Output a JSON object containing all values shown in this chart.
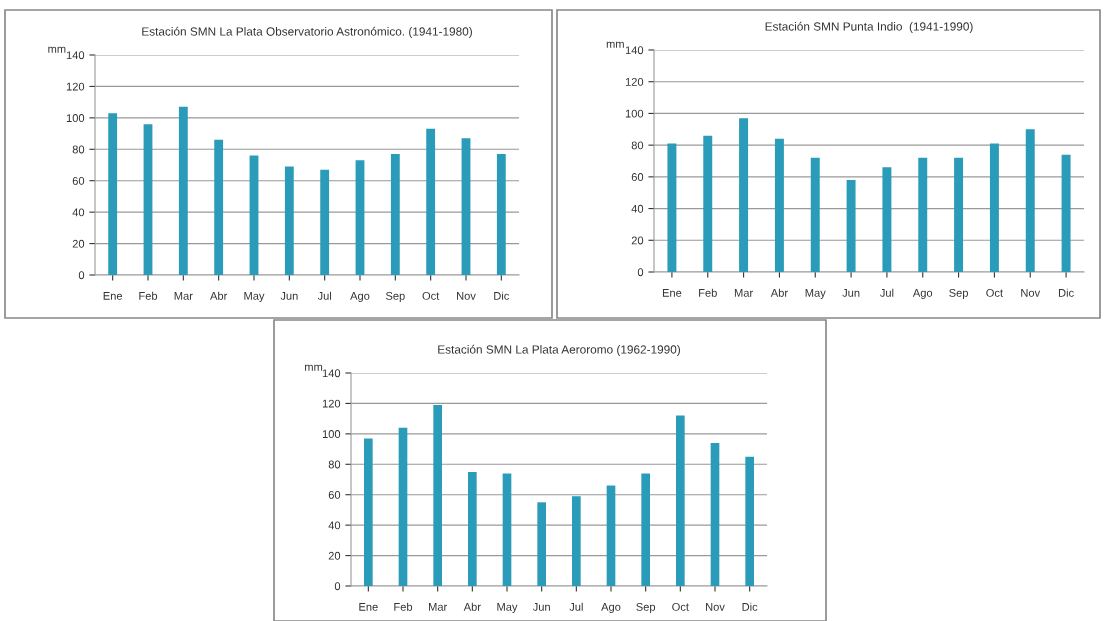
{
  "chart_data": [
    {
      "type": "bar",
      "title": "Estación SMN La Plata Observatorio Astronómico. (1941-1980)",
      "ylabel": "mm",
      "categories": [
        "Ene",
        "Feb",
        "Mar",
        "Abr",
        "May",
        "Jun",
        "Jul",
        "Ago",
        "Sep",
        "Oct",
        "Nov",
        "Dic"
      ],
      "values": [
        103,
        96,
        107,
        86,
        76,
        69,
        67,
        73,
        77,
        93,
        87,
        77
      ],
      "color": "#2a9bb8",
      "ylim": [
        0,
        140
      ],
      "yticks": [
        0,
        20,
        40,
        60,
        80,
        100,
        120,
        140
      ],
      "grid": "y"
    },
    {
      "type": "bar",
      "title": "Estación SMN Punta Indio  (1941-1990)",
      "ylabel": "mm",
      "categories": [
        "Ene",
        "Feb",
        "Mar",
        "Abr",
        "May",
        "Jun",
        "Jul",
        "Ago",
        "Sep",
        "Oct",
        "Nov",
        "Dic"
      ],
      "values": [
        81,
        86,
        97,
        84,
        72,
        58,
        66,
        72,
        72,
        81,
        90,
        74
      ],
      "color": "#2a9bb8",
      "ylim": [
        0,
        140
      ],
      "yticks": [
        0,
        20,
        40,
        60,
        80,
        100,
        120,
        140
      ],
      "grid": "y"
    },
    {
      "type": "bar",
      "title": "Estación SMN La Plata Aeroromo (1962-1990)",
      "ylabel": "mm",
      "categories": [
        "Ene",
        "Feb",
        "Mar",
        "Abr",
        "May",
        "Jun",
        "Jul",
        "Ago",
        "Sep",
        "Oct",
        "Nov",
        "Dic"
      ],
      "values": [
        97,
        104,
        119,
        75,
        74,
        55,
        59,
        66,
        74,
        112,
        94,
        85
      ],
      "color": "#2a9bb8",
      "ylim": [
        0,
        140
      ],
      "yticks": [
        0,
        20,
        40,
        60,
        80,
        100,
        120,
        140
      ],
      "grid": "y"
    }
  ]
}
